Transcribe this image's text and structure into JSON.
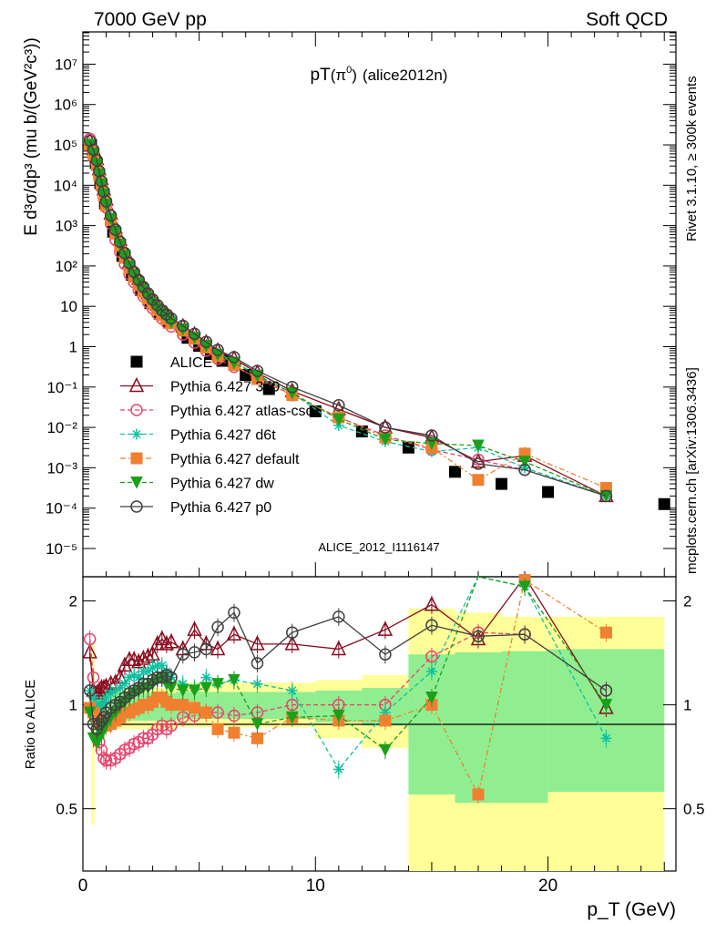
{
  "header": {
    "left": "7000 GeV pp",
    "right": "Soft QCD"
  },
  "side_labels": {
    "rivet": "Rivet 3.1.10, ≥ 300k events",
    "mcplots": "mcplots.cern.ch [arXiv:1306.3436]"
  },
  "chart_data": {
    "type": "line",
    "title_main": "pT",
    "title_particle": "(π",
    "title_sup": "0",
    "title_close": ")",
    "title_tag": "(alice2012n)",
    "ylabel_main": "E d³σ/dp³ (mu b/(GeV²c³))",
    "ylabel_ratio": "Ratio to ALICE",
    "xlabel": "p_T (GeV)",
    "analysis_id": "ALICE_2012_I1116147",
    "x_range": [
      0,
      25.5
    ],
    "y_range_log": [
      -5.7,
      7.8
    ],
    "ratio_range": [
      0.33,
      2.35
    ],
    "x_ticks": [
      "0",
      "10",
      "20"
    ],
    "y_ticks": [
      "10⁻⁵",
      "10⁻⁴",
      "10⁻³",
      "10⁻²",
      "10⁻¹",
      "1",
      "10",
      "10²",
      "10³",
      "10⁴",
      "10⁵",
      "10⁶",
      "10⁷"
    ],
    "ratio_ticks": [
      "0.5",
      "1",
      "2"
    ],
    "pt": [
      0.35,
      0.45,
      0.55,
      0.65,
      0.75,
      0.85,
      0.95,
      1.1,
      1.3,
      1.5,
      1.7,
      1.9,
      2.1,
      2.3,
      2.5,
      2.7,
      2.9,
      3.1,
      3.3,
      3.5,
      3.7,
      4.0,
      4.5,
      5.0,
      5.5,
      6.0,
      7.0,
      8.0,
      10.0,
      12.0,
      14.0,
      16.0,
      18.0,
      20.0,
      25.0
    ],
    "alice_x": [
      0.35,
      0.45,
      0.55,
      0.65,
      0.75,
      0.85,
      0.95,
      1.1,
      1.3,
      1.5,
      1.7,
      1.9,
      2.1,
      2.3,
      2.5,
      2.7,
      2.9,
      3.1,
      3.3,
      3.5,
      3.7,
      4.0,
      4.5,
      5.0,
      5.5,
      6.0,
      7.0,
      8.0,
      10.0,
      12.0,
      14.0,
      16.0,
      18.0,
      20.0,
      25.0
    ],
    "alice_log": [
      5.0,
      4.8,
      4.55,
      4.3,
      4.05,
      3.8,
      3.55,
      3.2,
      2.85,
      2.55,
      2.25,
      2.0,
      1.78,
      1.58,
      1.4,
      1.23,
      1.08,
      0.94,
      0.82,
      0.71,
      0.6,
      0.45,
      0.22,
      0.02,
      -0.18,
      -0.35,
      -0.7,
      -1.05,
      -1.6,
      -2.1,
      -2.5,
      -3.1,
      -3.4,
      -3.6,
      -3.9
    ],
    "ratio_band_inner": [
      [
        0.35,
        0.5,
        0.93,
        1.08
      ],
      [
        0.5,
        4.0,
        0.9,
        1.08
      ],
      [
        4.0,
        10.0,
        0.91,
        1.09
      ],
      [
        10.0,
        12.0,
        0.89,
        1.1
      ],
      [
        12.0,
        14.0,
        0.87,
        1.12
      ],
      [
        14.0,
        16.0,
        0.55,
        1.4
      ],
      [
        16.0,
        18.0,
        0.52,
        1.42
      ],
      [
        18.0,
        20.0,
        0.52,
        1.43
      ],
      [
        20.0,
        25.0,
        0.56,
        1.45
      ]
    ],
    "ratio_band_outer": [
      [
        0.35,
        0.5,
        0.45,
        1.5
      ],
      [
        0.5,
        4.0,
        0.85,
        1.12
      ],
      [
        4.0,
        10.0,
        0.86,
        1.16
      ],
      [
        10.0,
        12.0,
        0.8,
        1.18
      ],
      [
        12.0,
        14.0,
        0.75,
        1.22
      ],
      [
        14.0,
        16.0,
        0.33,
        1.9
      ],
      [
        16.0,
        18.0,
        0.33,
        1.85
      ],
      [
        18.0,
        20.0,
        0.33,
        1.8
      ],
      [
        20.0,
        25.0,
        0.33,
        1.8
      ]
    ],
    "series": [
      {
        "name": "ALICE",
        "color": "#000000",
        "marker": "square",
        "dash": "none",
        "x": [
          0.35,
          0.45,
          0.55,
          0.65,
          0.75,
          0.85,
          0.95,
          1.1,
          1.3,
          1.5,
          1.7,
          1.9,
          2.1,
          2.3,
          2.5,
          2.7,
          2.9,
          3.1,
          3.3,
          3.5,
          3.7,
          4.0,
          4.5,
          5.0,
          5.5,
          6.0,
          7.0,
          8.0,
          10.0,
          12.0,
          14.0,
          16.0,
          18.0,
          20.0,
          25.0
        ],
        "ylog": [
          5.0,
          4.8,
          4.55,
          4.3,
          4.05,
          3.8,
          3.55,
          3.2,
          2.85,
          2.55,
          2.25,
          2.0,
          1.78,
          1.58,
          1.4,
          1.23,
          1.08,
          0.94,
          0.82,
          0.71,
          0.6,
          0.45,
          0.22,
          0.02,
          -0.18,
          -0.35,
          -0.7,
          -1.05,
          -1.6,
          -2.1,
          -2.5,
          -3.1,
          -3.4,
          -3.6,
          -3.9
        ],
        "ratio": []
      },
      {
        "name": "Pythia 6.427 370",
        "color": "#8b0a1f",
        "marker": "triangle",
        "dash": "none",
        "x": [
          0.3,
          0.45,
          0.6,
          0.7,
          0.8,
          0.9,
          1.0,
          1.2,
          1.4,
          1.6,
          1.8,
          2.0,
          2.2,
          2.4,
          2.6,
          2.8,
          3.0,
          3.2,
          3.4,
          3.6,
          3.8,
          4.3,
          4.8,
          5.3,
          5.8,
          6.5,
          7.5,
          9.0,
          11.0,
          13.0,
          15.0,
          17.0,
          19.0,
          22.5
        ],
        "ylog": [
          5.1,
          4.9,
          4.65,
          4.4,
          4.15,
          3.9,
          3.65,
          3.3,
          2.95,
          2.65,
          2.35,
          2.1,
          1.88,
          1.68,
          1.5,
          1.33,
          1.18,
          1.04,
          0.92,
          0.81,
          0.7,
          0.5,
          0.3,
          0.1,
          -0.1,
          -0.3,
          -0.65,
          -1.1,
          -1.55,
          -2.0,
          -2.25,
          -2.85,
          -2.7,
          -3.7
        ],
        "ratio": [
          1.42,
          1.1,
          1.08,
          1.1,
          1.12,
          1.12,
          1.13,
          1.15,
          1.16,
          1.2,
          1.3,
          1.35,
          1.35,
          1.33,
          1.36,
          1.38,
          1.4,
          1.5,
          1.55,
          1.5,
          1.52,
          1.45,
          1.65,
          1.5,
          1.45,
          1.6,
          1.5,
          1.5,
          1.45,
          1.65,
          1.95,
          1.55,
          2.55,
          0.98
        ]
      },
      {
        "name": "Pythia 6.427 atlas-csc",
        "color": "#e8436d",
        "marker": "circle",
        "dash": "5,3",
        "x": [
          0.3,
          0.45,
          0.6,
          0.7,
          0.8,
          0.9,
          1.0,
          1.2,
          1.4,
          1.6,
          1.8,
          2.0,
          2.2,
          2.4,
          2.6,
          2.8,
          3.0,
          3.2,
          3.4,
          3.6,
          3.8,
          4.3,
          4.8,
          5.3,
          5.8,
          6.5,
          7.5,
          9.0,
          11.0,
          13.0,
          15.0,
          17.0,
          19.0,
          22.5
        ],
        "ylog": [
          5.15,
          4.85,
          4.5,
          4.2,
          3.95,
          3.7,
          3.45,
          3.05,
          2.65,
          2.35,
          2.05,
          1.8,
          1.6,
          1.4,
          1.25,
          1.1,
          0.95,
          0.82,
          0.7,
          0.6,
          0.5,
          0.3,
          0.1,
          -0.1,
          -0.3,
          -0.5,
          -0.75,
          -1.2,
          -1.75,
          -2.2,
          -2.55,
          -2.8,
          -3.05,
          -3.7
        ],
        "ratio": [
          1.55,
          1.2,
          0.85,
          0.78,
          0.74,
          0.7,
          0.69,
          0.69,
          0.7,
          0.72,
          0.74,
          0.75,
          0.77,
          0.78,
          0.8,
          0.8,
          0.82,
          0.85,
          0.87,
          0.85,
          0.87,
          0.92,
          0.93,
          0.95,
          0.95,
          0.93,
          0.95,
          1.0,
          1.0,
          1.0,
          1.38,
          1.62,
          1.6,
          1.1
        ]
      },
      {
        "name": "Pythia 6.427 d6t",
        "color": "#10c0a0",
        "marker": "star",
        "dash": "5,3",
        "x": [
          0.3,
          0.45,
          0.6,
          0.7,
          0.8,
          0.9,
          1.0,
          1.2,
          1.4,
          1.6,
          1.8,
          2.0,
          2.2,
          2.4,
          2.6,
          2.8,
          3.0,
          3.2,
          3.4,
          3.6,
          3.8,
          4.3,
          4.8,
          5.3,
          5.8,
          6.5,
          7.5,
          9.0,
          11.0,
          13.0,
          15.0,
          17.0,
          19.0,
          22.5
        ],
        "ylog": [
          5.05,
          4.82,
          4.55,
          4.3,
          4.05,
          3.8,
          3.55,
          3.2,
          2.87,
          2.58,
          2.3,
          2.05,
          1.82,
          1.62,
          1.45,
          1.28,
          1.12,
          0.98,
          0.85,
          0.74,
          0.63,
          0.45,
          0.25,
          0.05,
          -0.15,
          -0.38,
          -0.7,
          -1.15,
          -1.95,
          -2.35,
          -2.6,
          -2.5,
          -3.0,
          -3.7
        ],
        "ratio": [
          1.1,
          1.05,
          1.0,
          0.98,
          1.0,
          1.02,
          1.05,
          1.08,
          1.1,
          1.12,
          1.15,
          1.2,
          1.22,
          1.2,
          1.25,
          1.25,
          1.28,
          1.3,
          1.3,
          1.25,
          1.2,
          1.15,
          1.12,
          1.2,
          1.15,
          1.18,
          1.15,
          1.1,
          0.65,
          0.95,
          1.25,
          2.6,
          2.2,
          0.8
        ]
      },
      {
        "name": "Pythia 6.427 default",
        "color": "#f08030",
        "marker": "square",
        "dash": "6,3,2,3",
        "x": [
          0.3,
          0.45,
          0.6,
          0.7,
          0.8,
          0.9,
          1.0,
          1.2,
          1.4,
          1.6,
          1.8,
          2.0,
          2.2,
          2.4,
          2.6,
          2.8,
          3.0,
          3.2,
          3.4,
          3.6,
          3.8,
          4.3,
          4.8,
          5.3,
          5.8,
          6.5,
          7.5,
          9.0,
          11.0,
          13.0,
          15.0,
          17.0,
          19.0,
          22.5
        ],
        "ylog": [
          5.0,
          4.75,
          4.5,
          4.25,
          4.0,
          3.75,
          3.5,
          3.15,
          2.8,
          2.5,
          2.2,
          1.95,
          1.73,
          1.53,
          1.36,
          1.2,
          1.05,
          0.91,
          0.79,
          0.68,
          0.58,
          0.4,
          0.2,
          -0.02,
          -0.24,
          -0.45,
          -0.8,
          -1.2,
          -1.75,
          -2.25,
          -2.5,
          -3.3,
          -2.65,
          -3.5
        ],
        "ratio": [
          0.98,
          0.95,
          0.92,
          0.9,
          0.88,
          0.88,
          0.87,
          0.88,
          0.9,
          0.92,
          0.95,
          0.95,
          0.97,
          0.98,
          1.0,
          1.0,
          1.02,
          1.05,
          1.05,
          1.02,
          1.0,
          1.0,
          0.98,
          0.95,
          0.85,
          0.83,
          0.8,
          0.92,
          0.9,
          0.9,
          1.0,
          0.55,
          2.3,
          1.62
        ]
      },
      {
        "name": "Pythia 6.427 dw",
        "color": "#1aa01a",
        "marker": "triangle-down",
        "dash": "5,3",
        "x": [
          0.3,
          0.45,
          0.6,
          0.7,
          0.8,
          0.9,
          1.0,
          1.2,
          1.4,
          1.6,
          1.8,
          2.0,
          2.2,
          2.4,
          2.6,
          2.8,
          3.0,
          3.2,
          3.4,
          3.6,
          3.8,
          4.3,
          4.8,
          5.3,
          5.8,
          6.5,
          7.5,
          9.0,
          11.0,
          13.0,
          15.0,
          17.0,
          19.0,
          22.5
        ],
        "ylog": [
          5.0,
          4.78,
          4.52,
          4.27,
          4.02,
          3.77,
          3.52,
          3.17,
          2.83,
          2.53,
          2.24,
          1.99,
          1.77,
          1.57,
          1.4,
          1.23,
          1.08,
          0.94,
          0.82,
          0.71,
          0.6,
          0.43,
          0.22,
          0.02,
          -0.2,
          -0.4,
          -0.72,
          -1.15,
          -1.8,
          -2.3,
          -2.4,
          -2.45,
          -2.85,
          -3.7
        ],
        "ratio": [
          0.95,
          0.8,
          0.78,
          0.8,
          0.82,
          0.85,
          0.88,
          0.92,
          0.95,
          1.0,
          1.02,
          1.05,
          1.08,
          1.1,
          1.12,
          1.12,
          1.15,
          1.18,
          1.2,
          1.15,
          1.12,
          1.1,
          1.1,
          1.12,
          1.15,
          1.18,
          0.88,
          0.92,
          0.93,
          0.74,
          1.05,
          2.75,
          2.2,
          1.0
        ]
      },
      {
        "name": "Pythia 6.427 p0",
        "color": "#404040",
        "marker": "circle",
        "dash": "none",
        "x": [
          0.3,
          0.45,
          0.6,
          0.7,
          0.8,
          0.9,
          1.0,
          1.2,
          1.4,
          1.6,
          1.8,
          2.0,
          2.2,
          2.4,
          2.6,
          2.8,
          3.0,
          3.2,
          3.4,
          3.6,
          3.8,
          4.3,
          4.8,
          5.3,
          5.8,
          6.5,
          7.5,
          9.0,
          11.0,
          13.0,
          15.0,
          17.0,
          19.0,
          22.5
        ],
        "ylog": [
          5.1,
          4.88,
          4.62,
          4.35,
          4.1,
          3.85,
          3.6,
          3.25,
          2.9,
          2.6,
          2.32,
          2.07,
          1.85,
          1.65,
          1.48,
          1.32,
          1.17,
          1.03,
          0.9,
          0.8,
          0.7,
          0.52,
          0.32,
          0.12,
          -0.08,
          -0.26,
          -0.6,
          -1.0,
          -1.45,
          -2.0,
          -2.2,
          -2.9,
          -3.05,
          -3.7
        ],
        "ratio": [
          1.1,
          0.88,
          0.85,
          0.88,
          0.9,
          0.92,
          0.95,
          0.98,
          1.0,
          1.02,
          1.05,
          1.08,
          1.1,
          1.12,
          1.15,
          1.15,
          1.18,
          1.2,
          1.2,
          1.22,
          1.2,
          1.4,
          1.42,
          1.45,
          1.68,
          1.85,
          1.32,
          1.62,
          1.8,
          1.4,
          1.7,
          1.58,
          1.6,
          1.1
        ]
      }
    ],
    "legend_position": "left-center",
    "log_scale_y": true
  }
}
